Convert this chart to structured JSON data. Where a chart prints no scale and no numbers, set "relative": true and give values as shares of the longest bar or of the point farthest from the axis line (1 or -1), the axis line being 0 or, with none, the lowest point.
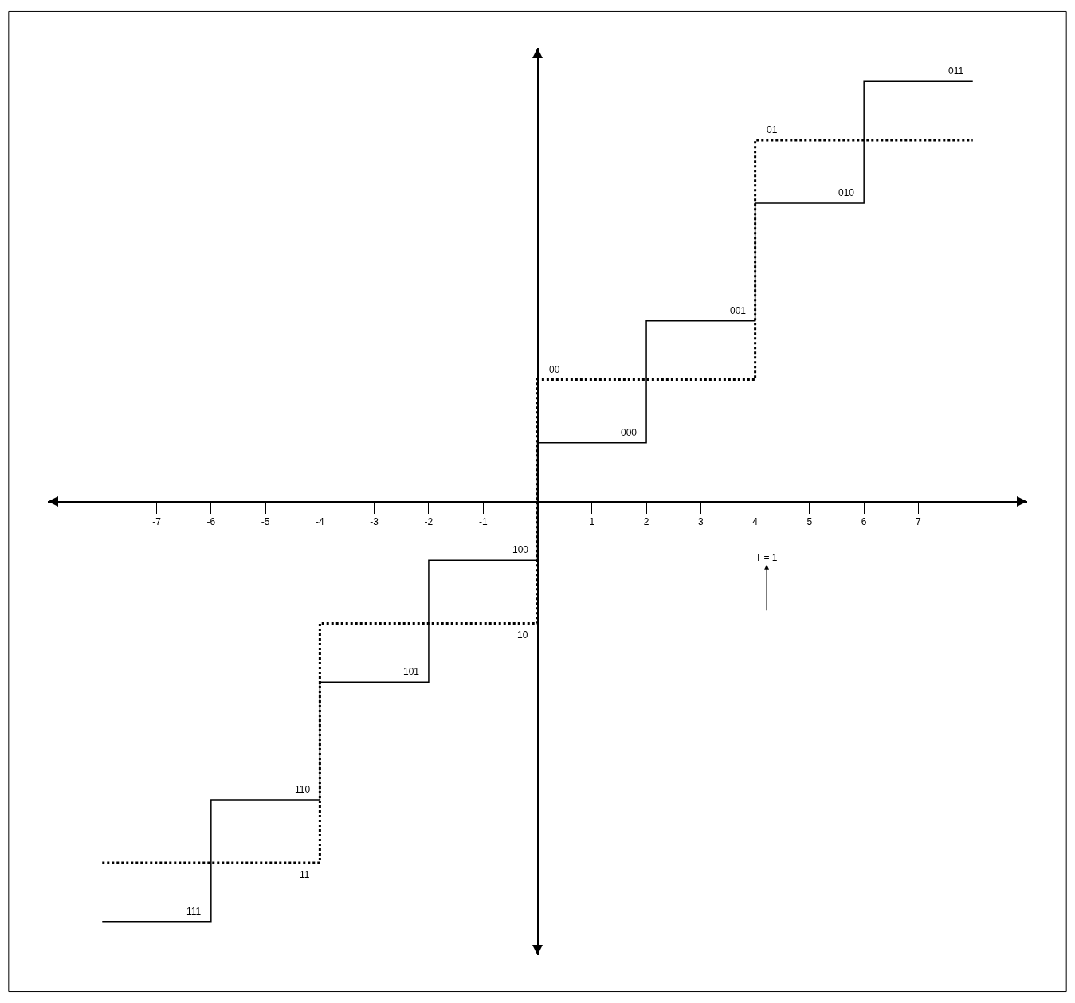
{
  "chart_data": {
    "type": "step",
    "relative": true,
    "xlim": [
      -9,
      9
    ],
    "xticks": [
      -7,
      -6,
      -5,
      -4,
      -3,
      -2,
      -1,
      1,
      2,
      3,
      4,
      5,
      6,
      7
    ],
    "grid": false,
    "legend": false,
    "tick_labels": "x",
    "series": [
      {
        "color": "#000000",
        "line_style": "solid",
        "x": [
          -8,
          -6,
          -4,
          -2,
          0,
          2,
          4,
          6,
          8
        ],
        "values": [
          -1,
          -0.71,
          -0.43,
          -0.14,
          0.14,
          0.43,
          0.71,
          1,
          1
        ]
      },
      {
        "color": "#000000",
        "line_style": "dashed",
        "x": [
          -8,
          -4,
          0,
          4,
          8
        ],
        "values": [
          -0.86,
          -0.29,
          0.29,
          0.86,
          0.86
        ]
      }
    ],
    "annotations": [
      {
        "text": "011",
        "x": 8,
        "y": 1
      },
      {
        "text": "01",
        "x": 4,
        "y": 0.86
      },
      {
        "text": "010",
        "x": 6,
        "y": 0.71
      },
      {
        "text": "001",
        "x": 4,
        "y": 0.43
      },
      {
        "text": "00",
        "x": 0,
        "y": 0.29
      },
      {
        "text": "000",
        "x": 2,
        "y": 0.14
      },
      {
        "text": "100",
        "x": 0,
        "y": -0.14
      },
      {
        "text": "10",
        "x": 0,
        "y": -0.29
      },
      {
        "text": "101",
        "x": -2,
        "y": -0.43
      },
      {
        "text": "110",
        "x": -4,
        "y": -0.71
      },
      {
        "text": "11",
        "x": -4,
        "y": -0.86
      },
      {
        "text": "111",
        "x": -6,
        "y": -1
      },
      "T = 1"
    ]
  }
}
